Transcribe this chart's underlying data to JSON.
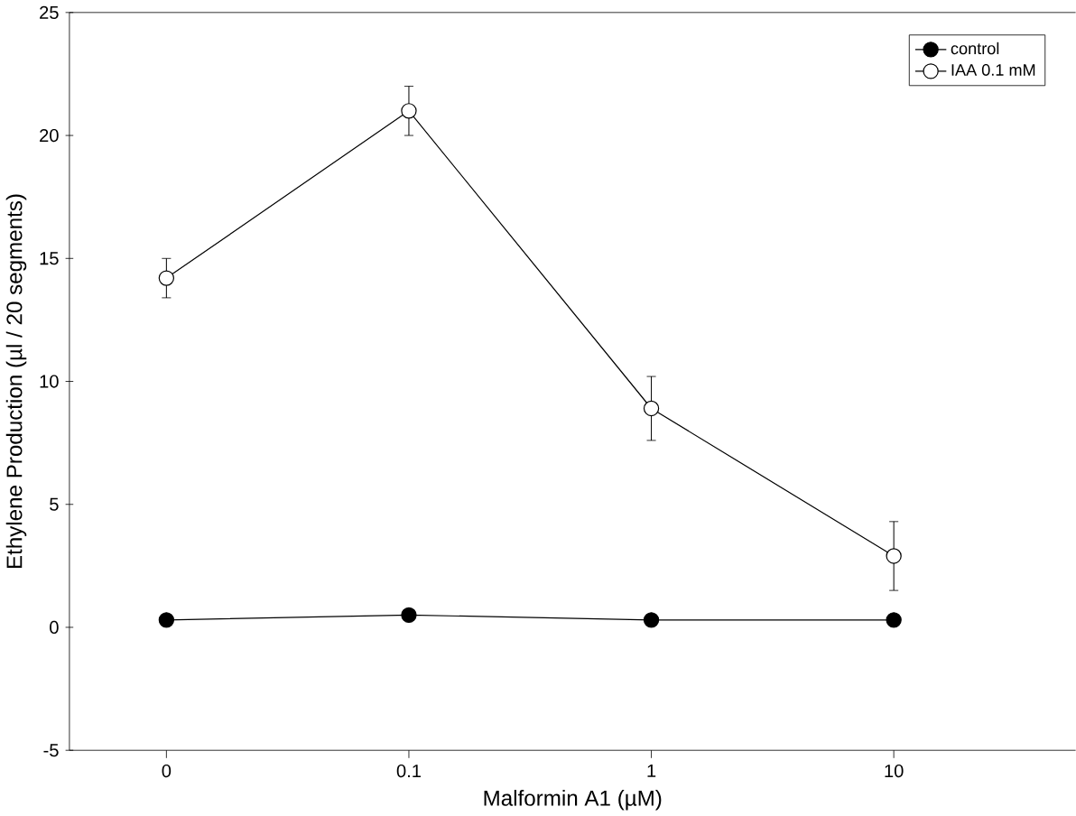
{
  "chart_data": {
    "type": "line",
    "xlabel": "Malformin A1 (µM)",
    "ylabel": "Ethylene Production (µl / 20 segments)",
    "categories": [
      "0",
      "0.1",
      "1",
      "10"
    ],
    "series": [
      {
        "name": "control",
        "color": "#000000",
        "values": [
          0.3,
          0.5,
          0.3,
          0.3
        ]
      },
      {
        "name": "IAA 0.1 mM",
        "color": "#ffffff",
        "values": [
          14.2,
          21.0,
          8.9,
          2.9
        ],
        "errors": [
          0.8,
          1.0,
          1.3,
          1.4
        ]
      }
    ],
    "ylim": [
      -5,
      25
    ],
    "yticks": [
      -5,
      0,
      5,
      10,
      15,
      20,
      25
    ],
    "legend": "top right",
    "marker": "circle",
    "line_style": "solid",
    "grid": false
  }
}
